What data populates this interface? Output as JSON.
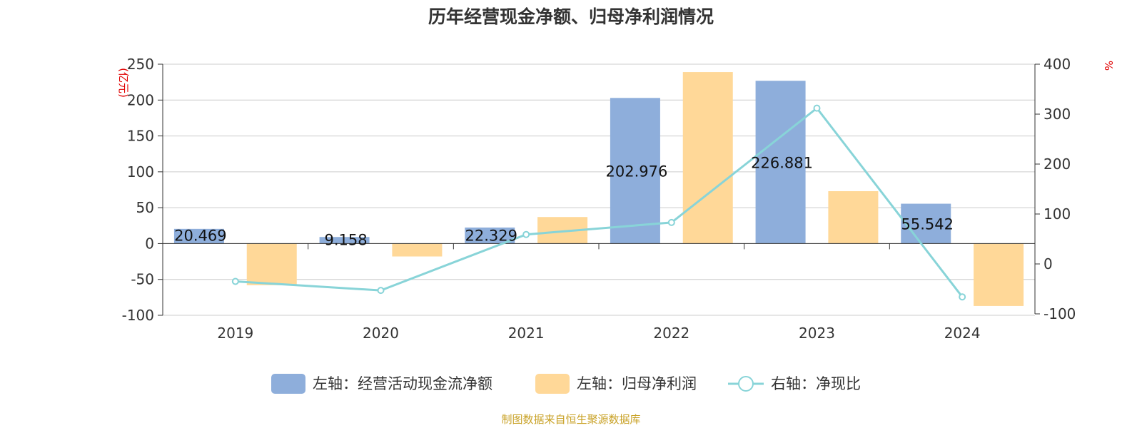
{
  "chart_data": {
    "type": "bar",
    "title": "历年经营现金净额、归母净利润情况",
    "categories": [
      "2019",
      "2020",
      "2021",
      "2022",
      "2023",
      "2024"
    ],
    "series": [
      {
        "name": "左轴：经营活动现金流净额",
        "axis": "left",
        "type": "bar",
        "color": "#8eaedb",
        "values": [
          20.469,
          9.158,
          22.329,
          202.976,
          226.881,
          55.542
        ]
      },
      {
        "name": "左轴：归母净利润",
        "axis": "left",
        "type": "bar",
        "color": "#ffd898",
        "values": [
          -58,
          -18,
          37,
          239,
          73,
          -87
        ]
      },
      {
        "name": "右轴：净现比",
        "axis": "right",
        "type": "line",
        "color": "#88d4d8",
        "values": [
          -35,
          -53,
          59,
          83,
          312,
          -66
        ]
      }
    ],
    "data_labels": [
      "20.469",
      "9.158",
      "22.329",
      "202.976",
      "226.881",
      "55.542"
    ],
    "left_axis": {
      "unit": "(亿元)",
      "ylim": [
        -100,
        250
      ],
      "ticks": [
        "250",
        "200",
        "150",
        "100",
        "50",
        "0",
        "-50",
        "-100"
      ]
    },
    "right_axis": {
      "unit": "%",
      "ylim": [
        -100,
        400
      ],
      "ticks": [
        "400",
        "300",
        "200",
        "100",
        "0",
        "-100"
      ]
    },
    "grid": true,
    "legend_position": "bottom"
  },
  "source": "制图数据来自恒生聚源数据库"
}
